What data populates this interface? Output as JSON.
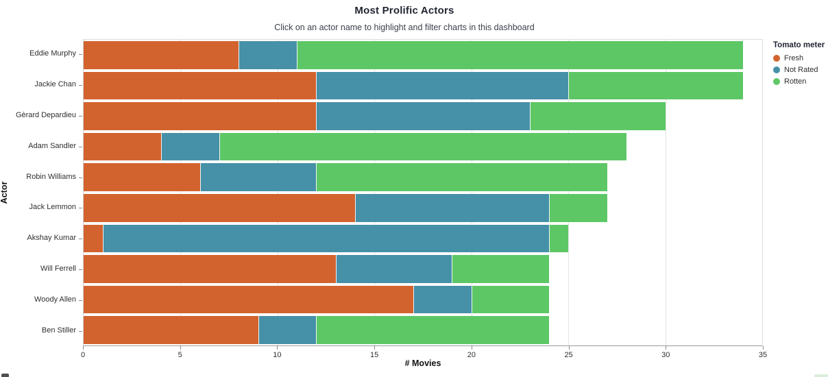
{
  "page": {
    "title": "Most Prolific Actors",
    "subtitle": "Click on an actor name to highlight and filter charts in this dashboard"
  },
  "chart_data": {
    "type": "bar",
    "orientation": "horizontal",
    "stacked": true,
    "title": "Most Prolific Actors",
    "subtitle": "Click on an actor name to highlight and filter charts in this dashboard",
    "xlabel": "# Movies",
    "ylabel": "Actor",
    "xlim": [
      0,
      35
    ],
    "xticks": [
      0,
      5,
      10,
      15,
      20,
      25,
      30,
      35
    ],
    "grid": true,
    "categories": [
      "Eddie Murphy",
      "Jackie Chan",
      "Gèrard Depardieu",
      "Adam Sandler",
      "Robin Williams",
      "Jack Lemmon",
      "Akshay Kumar",
      "Will Ferrell",
      "Woody Allen",
      "Ben Stiller"
    ],
    "series": [
      {
        "name": "Fresh",
        "color": "#d2632e",
        "values": [
          8,
          12,
          12,
          4,
          6,
          14,
          1,
          13,
          17,
          9
        ]
      },
      {
        "name": "Not Rated",
        "color": "#4690a8",
        "values": [
          3,
          13,
          11,
          3,
          6,
          10,
          23,
          6,
          3,
          3
        ]
      },
      {
        "name": "Rotten",
        "color": "#5dc766",
        "values": [
          23,
          9,
          7,
          21,
          15,
          3,
          1,
          5,
          4,
          12
        ]
      }
    ],
    "legend": {
      "title": "Tomato meter",
      "position": "top-right",
      "entries": [
        {
          "label": "Fresh",
          "color": "#d2632e"
        },
        {
          "label": "Not Rated",
          "color": "#4690a8"
        },
        {
          "label": "Rotten",
          "color": "#5dc766"
        }
      ]
    }
  }
}
